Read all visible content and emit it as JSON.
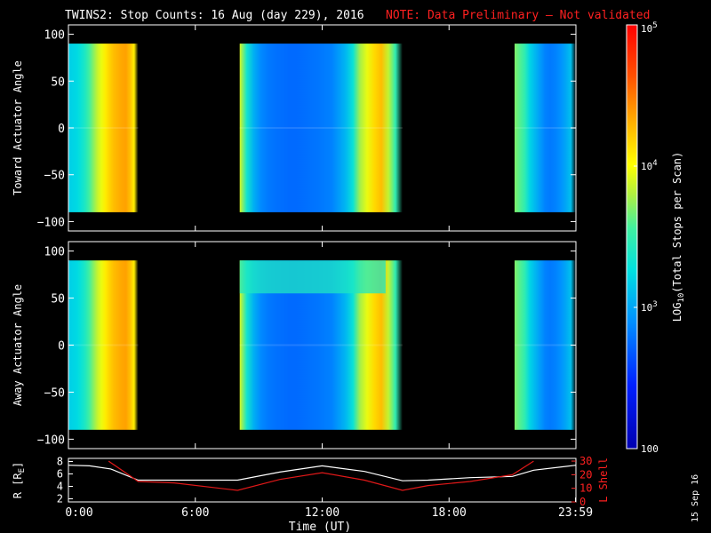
{
  "title": {
    "main": "TWINS2: Stop Counts: 16 Aug (day 229), 2016",
    "note": "NOTE: Data Preliminary — Not validated",
    "date_stamp": "15 Sep 16"
  },
  "colors": {
    "background": "#000000",
    "axes": "#ffffff",
    "note": "#ff2020",
    "l_shell": "#e01818",
    "r_line": "#ffffff"
  },
  "chart_data": [
    {
      "type": "heatmap",
      "ylabel": "Toward Actuator Angle",
      "ylim": [
        -110,
        110
      ],
      "yticks": [
        "100",
        "50",
        "0",
        "−50",
        "−100"
      ],
      "ytick_values": [
        100,
        50,
        0,
        -50,
        -100
      ],
      "xlim": [
        0,
        24
      ],
      "data_y_range": [
        -90,
        90
      ],
      "segments": [
        {
          "start_hour": 0.0,
          "end_hour": 3.3,
          "profile": [
            1500,
            1600,
            1700,
            2000,
            2500,
            3500,
            5000,
            7000,
            9000,
            12000,
            15000,
            18000,
            20000,
            22000,
            23000,
            18000,
            12000,
            0
          ]
        },
        {
          "start_hour": 8.1,
          "end_hour": 15.8,
          "profile": [
            8000,
            2200,
            1100,
            750,
            650,
            600,
            580,
            560,
            560,
            580,
            600,
            620,
            660,
            700,
            900,
            1200,
            2000,
            6000,
            9000,
            14000,
            18000,
            7000,
            3000,
            0
          ]
        },
        {
          "start_hour": 21.1,
          "end_hour": 24.0,
          "profile": [
            5000,
            4000,
            3000,
            1600,
            1200,
            900,
            700,
            650,
            700,
            800,
            1000,
            1300,
            0
          ]
        }
      ]
    },
    {
      "type": "heatmap",
      "ylabel": "Away Actuator Angle",
      "ylim": [
        -110,
        110
      ],
      "yticks": [
        "100",
        "50",
        "0",
        "−50",
        "−100"
      ],
      "ytick_values": [
        100,
        50,
        0,
        -50,
        -100
      ],
      "xlim": [
        0,
        24
      ],
      "data_y_range": [
        -90,
        90
      ],
      "segments": [
        {
          "start_hour": 0.0,
          "end_hour": 3.3,
          "profile": [
            1500,
            1600,
            1700,
            2000,
            2500,
            3500,
            5000,
            7000,
            9000,
            12000,
            15000,
            18000,
            20000,
            22000,
            23000,
            18000,
            12000,
            0
          ]
        },
        {
          "start_hour": 8.1,
          "end_hour": 15.8,
          "profile": [
            8000,
            2200,
            1100,
            750,
            650,
            600,
            580,
            560,
            560,
            580,
            600,
            620,
            660,
            700,
            900,
            1200,
            2000,
            6000,
            9000,
            14000,
            18000,
            7000,
            3000,
            0
          ]
        },
        {
          "start_hour": 21.1,
          "end_hour": 24.0,
          "profile": [
            5000,
            4000,
            3000,
            1600,
            1200,
            900,
            700,
            650,
            700,
            800,
            1000,
            1300,
            0
          ]
        }
      ],
      "top_band": {
        "start_hour": 8.1,
        "end_hour": 15.0,
        "angle_min": 55,
        "angle_max": 90,
        "level": 2500
      }
    },
    {
      "type": "line",
      "ylabel_left": "R [R",
      "ylabel_left_sub": "E",
      "ylabel_left_close": "]",
      "ylabel_right": "L Shell",
      "yticks_left": [
        "8",
        "6",
        "4",
        "2"
      ],
      "ytick_values_left": [
        8,
        6,
        4,
        2
      ],
      "ylim_left": [
        1.5,
        8.5
      ],
      "yticks_right": [
        "30",
        "20",
        "10",
        "0"
      ],
      "ytick_values_right": [
        30,
        20,
        10,
        0
      ],
      "ylim_right": [
        0,
        32
      ],
      "xlabel": "Time (UT)",
      "xticks": [
        "0:00",
        "6:00",
        "12:00",
        "18:00",
        "23:59"
      ],
      "xtick_values": [
        0,
        6,
        12,
        18,
        23.98
      ],
      "xlim": [
        0,
        24
      ],
      "series": [
        {
          "axis": "left",
          "x": [
            0,
            1,
            2,
            3.3,
            5,
            8,
            10,
            12,
            14,
            15.8,
            17,
            19,
            21,
            22,
            24
          ],
          "y": [
            7.4,
            7.3,
            6.8,
            5.0,
            5.0,
            5.0,
            6.3,
            7.3,
            6.4,
            4.9,
            5.0,
            5.4,
            5.6,
            6.6,
            7.4
          ]
        },
        {
          "axis": "right",
          "x": [
            1.9,
            3.3,
            5,
            8,
            10,
            12,
            14,
            15.8,
            17,
            19,
            21,
            22
          ],
          "y": [
            30,
            15,
            14,
            8.5,
            16.5,
            21.5,
            16,
            8.5,
            12,
            15,
            20,
            30
          ]
        }
      ]
    },
    {
      "type": "heatmap-colorbar",
      "label_prefix": "LOG",
      "label_sub": "10",
      "label_suffix": "(Total Stops per Scan)",
      "ticks": [
        {
          "base": "10",
          "exp": "5",
          "value": 100000
        },
        {
          "base": "10",
          "exp": "4",
          "value": 10000
        },
        {
          "base": "10",
          "exp": "3",
          "value": 1000
        },
        {
          "base": "100",
          "exp": "",
          "value": 100
        }
      ],
      "range": [
        100,
        100000
      ]
    }
  ]
}
